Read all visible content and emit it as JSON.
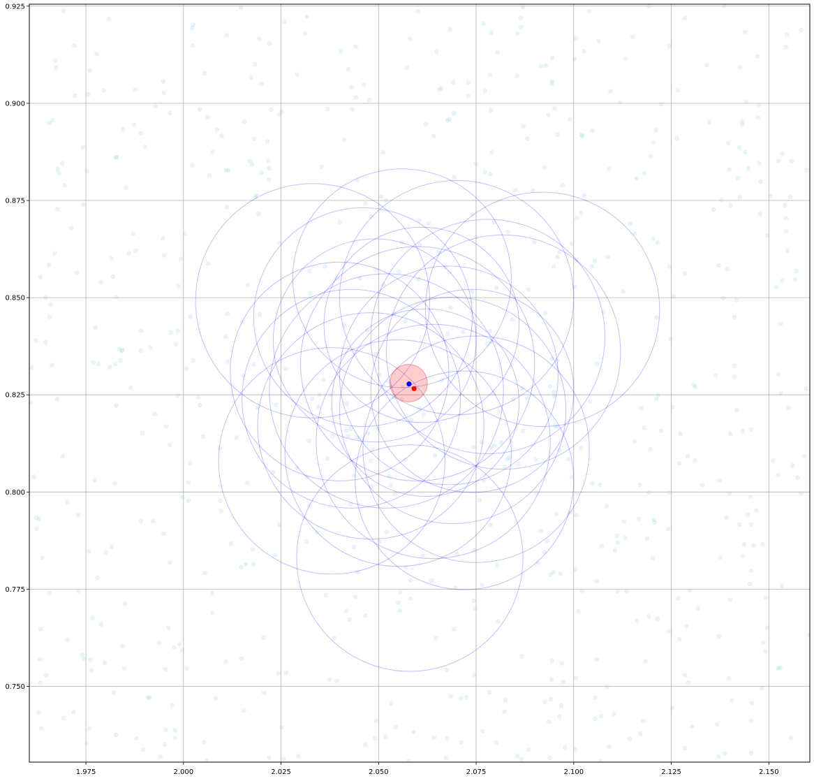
{
  "chart_data": {
    "type": "scatter",
    "title": "",
    "xlabel": "",
    "ylabel": "",
    "xlim": [
      1.9605,
      2.1605
    ],
    "ylim": [
      0.7305,
      0.9255
    ],
    "grid": true,
    "xticks": [
      1.975,
      2.0,
      2.025,
      2.05,
      2.075,
      2.1,
      2.125,
      2.15
    ],
    "xtick_labels": [
      "1.975",
      "2.000",
      "2.025",
      "2.050",
      "2.075",
      "2.100",
      "2.125",
      "2.150"
    ],
    "yticks": [
      0.75,
      0.775,
      0.8,
      0.825,
      0.85,
      0.875,
      0.9,
      0.925
    ],
    "ytick_labels": [
      "0.750",
      "0.775",
      "0.800",
      "0.825",
      "0.850",
      "0.875",
      "0.900",
      "0.925"
    ],
    "background_points": {
      "count": 700,
      "color": "#add8e6",
      "opacity": 0.3,
      "note_distribution": "uniform scatter over full axes"
    },
    "neighbor_circles": {
      "color": "#0000ff",
      "opacity": 0.25,
      "items": [
        {
          "cx": 2.0331,
          "cy": 0.8492,
          "r": 0.03
        },
        {
          "cx": 2.07,
          "cy": 0.85,
          "r": 0.03
        },
        {
          "cx": 2.092,
          "cy": 0.847,
          "r": 0.03
        },
        {
          "cx": 2.056,
          "cy": 0.855,
          "r": 0.028
        },
        {
          "cx": 2.078,
          "cy": 0.84,
          "r": 0.03
        },
        {
          "cx": 2.04,
          "cy": 0.831,
          "r": 0.028
        },
        {
          "cx": 2.082,
          "cy": 0.836,
          "r": 0.03
        },
        {
          "cx": 2.049,
          "cy": 0.839,
          "r": 0.026
        },
        {
          "cx": 2.061,
          "cy": 0.843,
          "r": 0.025
        },
        {
          "cx": 2.043,
          "cy": 0.824,
          "r": 0.028
        },
        {
          "cx": 2.048,
          "cy": 0.817,
          "r": 0.029
        },
        {
          "cx": 2.055,
          "cy": 0.81,
          "r": 0.029
        },
        {
          "cx": 2.038,
          "cy": 0.808,
          "r": 0.029
        },
        {
          "cx": 2.069,
          "cy": 0.821,
          "r": 0.029
        },
        {
          "cx": 2.075,
          "cy": 0.811,
          "r": 0.029
        },
        {
          "cx": 2.072,
          "cy": 0.803,
          "r": 0.028
        },
        {
          "cx": 2.064,
          "cy": 0.813,
          "r": 0.03
        },
        {
          "cx": 2.06,
          "cy": 0.833,
          "r": 0.03
        },
        {
          "cx": 2.052,
          "cy": 0.826,
          "r": 0.03
        },
        {
          "cx": 2.068,
          "cy": 0.83,
          "r": 0.028
        },
        {
          "cx": 2.058,
          "cy": 0.783,
          "r": 0.029
        },
        {
          "cx": 2.074,
          "cy": 0.826,
          "r": 0.026
        },
        {
          "cx": 2.046,
          "cy": 0.845,
          "r": 0.028
        },
        {
          "cx": 2.062,
          "cy": 0.823,
          "r": 0.024
        }
      ]
    },
    "highlight_circle": {
      "cx": 2.0577,
      "cy": 0.828,
      "r": 0.0048,
      "color": "#ff0000",
      "opacity": 0.2
    },
    "points": [
      {
        "name": "blue",
        "x": 2.0578,
        "y": 0.8278,
        "color": "#0000ff"
      },
      {
        "name": "red",
        "x": 2.0591,
        "y": 0.8266,
        "color": "#ff0000"
      }
    ]
  }
}
